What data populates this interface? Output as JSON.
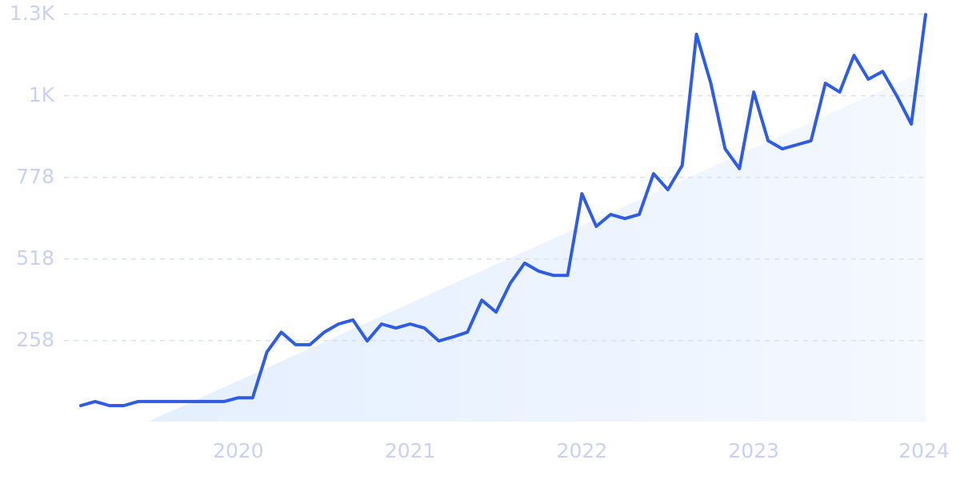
{
  "chart_data": {
    "type": "line",
    "categories": [
      null,
      null,
      null,
      null,
      null,
      null,
      null,
      null,
      null,
      null,
      null,
      "2020",
      null,
      null,
      null,
      null,
      null,
      null,
      null,
      null,
      null,
      null,
      null,
      "2021",
      null,
      null,
      null,
      null,
      null,
      null,
      null,
      null,
      null,
      null,
      null,
      "2022",
      null,
      null,
      null,
      null,
      null,
      null,
      null,
      null,
      null,
      null,
      null,
      "2023",
      null,
      null,
      null,
      null,
      null,
      null,
      null,
      null,
      null,
      null,
      null,
      "2024"
    ],
    "series": [
      {
        "color": "#2f5ce0",
        "values": [
          51,
          64,
          51,
          51,
          64,
          64,
          64,
          64,
          64,
          64,
          64,
          76,
          76,
          222,
          285,
          245,
          245,
          285,
          311,
          324,
          257,
          311,
          298,
          311,
          298,
          257,
          270,
          285,
          387,
          349,
          441,
          505,
          479,
          466,
          466,
          726,
          622,
          660,
          647,
          660,
          790,
          739,
          816,
          1234,
          1078,
          869,
          806,
          1050,
          895,
          869,
          882,
          895,
          1078,
          1050,
          1167,
          1091,
          1116,
          1037,
          948,
          1297
        ]
      }
    ],
    "ylim": [
      0,
      1300
    ],
    "yticks": [
      258,
      518,
      778,
      {
        "value": 1038,
        "label": "1K"
      },
      {
        "value": 1298,
        "label": "1.3K"
      }
    ],
    "grid": true
  }
}
